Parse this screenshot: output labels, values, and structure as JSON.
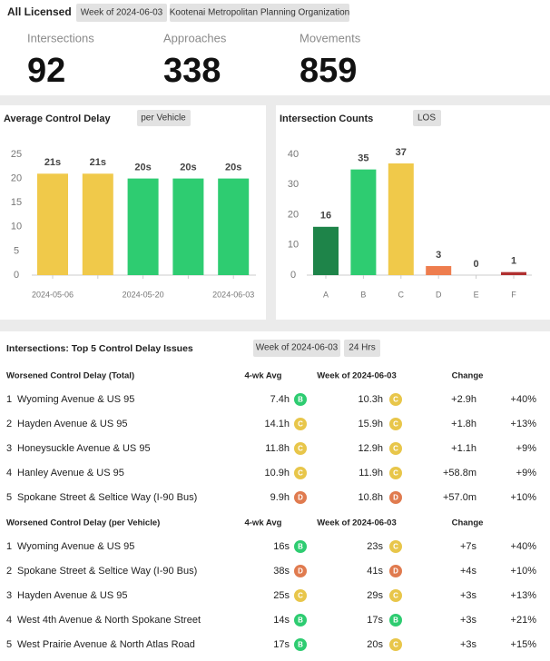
{
  "header": {
    "title": "All Licensed",
    "pills": [
      "Week of 2024-06-03",
      "Kootenai Metropolitan Planning Organization"
    ],
    "stats": [
      {
        "label": "Intersections",
        "value": 92
      },
      {
        "label": "Approaches",
        "value": 338
      },
      {
        "label": "Movements",
        "value": 859
      }
    ]
  },
  "delay_chart": {
    "type": "bar",
    "title": "Average Control Delay",
    "pill": "per Vehicle",
    "categories": [
      "2024-05-06",
      null,
      "2024-05-20",
      null,
      "2024-06-03"
    ],
    "values": [
      21,
      21,
      20,
      20,
      20
    ],
    "value_labels": [
      "21s",
      "21s",
      "20s",
      "20s",
      "20s"
    ],
    "colors": [
      "#f0c94a",
      "#f0c94a",
      "#2ecc71",
      "#2ecc71",
      "#2ecc71"
    ],
    "ylim": [
      0,
      25
    ],
    "yticks": [
      0,
      5,
      10,
      15,
      20,
      25
    ]
  },
  "los_chart": {
    "type": "bar",
    "title": "Intersection Counts",
    "pill": "LOS",
    "categories": [
      "A",
      "B",
      "C",
      "D",
      "E",
      "F"
    ],
    "values": [
      16,
      35,
      37,
      3,
      0,
      1
    ],
    "colors": [
      "#1e8449",
      "#2ecc71",
      "#f0c94a",
      "#ee7d4e",
      "#999999",
      "#b03030"
    ],
    "ylim": [
      0,
      40
    ],
    "yticks": [
      0,
      10,
      20,
      30,
      40
    ]
  },
  "issues": {
    "title": "Intersections: Top 5 Control Delay Issues",
    "pills": [
      "Week of 2024-06-03",
      "24 Hrs"
    ],
    "tables": [
      {
        "header": {
          "title": "Worsened Control Delay (Total)",
          "avg": "4-wk Avg",
          "week": "Week of 2024-06-03",
          "change": "Change"
        },
        "rows": [
          {
            "rank": 1,
            "name": "Wyoming Avenue & US 95",
            "avg": "7.4h",
            "avg_los": "B",
            "week": "10.3h",
            "week_los": "C",
            "change": "+2.9h",
            "pct": "+40%"
          },
          {
            "rank": 2,
            "name": "Hayden Avenue & US 95",
            "avg": "14.1h",
            "avg_los": "C",
            "week": "15.9h",
            "week_los": "C",
            "change": "+1.8h",
            "pct": "+13%"
          },
          {
            "rank": 3,
            "name": "Honeysuckle Avenue & US 95",
            "avg": "11.8h",
            "avg_los": "C",
            "week": "12.9h",
            "week_los": "C",
            "change": "+1.1h",
            "pct": "+9%"
          },
          {
            "rank": 4,
            "name": "Hanley Avenue & US 95",
            "avg": "10.9h",
            "avg_los": "C",
            "week": "11.9h",
            "week_los": "C",
            "change": "+58.8m",
            "pct": "+9%"
          },
          {
            "rank": 5,
            "name": "Spokane Street & Seltice Way (I-90 Bus)",
            "avg": "9.9h",
            "avg_los": "D",
            "week": "10.8h",
            "week_los": "D",
            "change": "+57.0m",
            "pct": "+10%"
          }
        ]
      },
      {
        "header": {
          "title": "Worsened Control Delay (per Vehicle)",
          "avg": "4-wk Avg",
          "week": "Week of 2024-06-03",
          "change": "Change"
        },
        "rows": [
          {
            "rank": 1,
            "name": "Wyoming Avenue & US 95",
            "avg": "16s",
            "avg_los": "B",
            "week": "23s",
            "week_los": "C",
            "change": "+7s",
            "pct": "+40%"
          },
          {
            "rank": 2,
            "name": "Spokane Street & Seltice Way (I-90 Bus)",
            "avg": "38s",
            "avg_los": "D",
            "week": "41s",
            "week_los": "D",
            "change": "+4s",
            "pct": "+10%"
          },
          {
            "rank": 3,
            "name": "Hayden Avenue & US 95",
            "avg": "25s",
            "avg_los": "C",
            "week": "29s",
            "week_los": "C",
            "change": "+3s",
            "pct": "+13%"
          },
          {
            "rank": 4,
            "name": "West 4th Avenue & North Spokane Street",
            "avg": "14s",
            "avg_los": "B",
            "week": "17s",
            "week_los": "B",
            "change": "+3s",
            "pct": "+21%"
          },
          {
            "rank": 5,
            "name": "West Prairie Avenue & North Atlas Road",
            "avg": "17s",
            "avg_los": "B",
            "week": "20s",
            "week_los": "C",
            "change": "+3s",
            "pct": "+15%"
          }
        ]
      }
    ]
  }
}
